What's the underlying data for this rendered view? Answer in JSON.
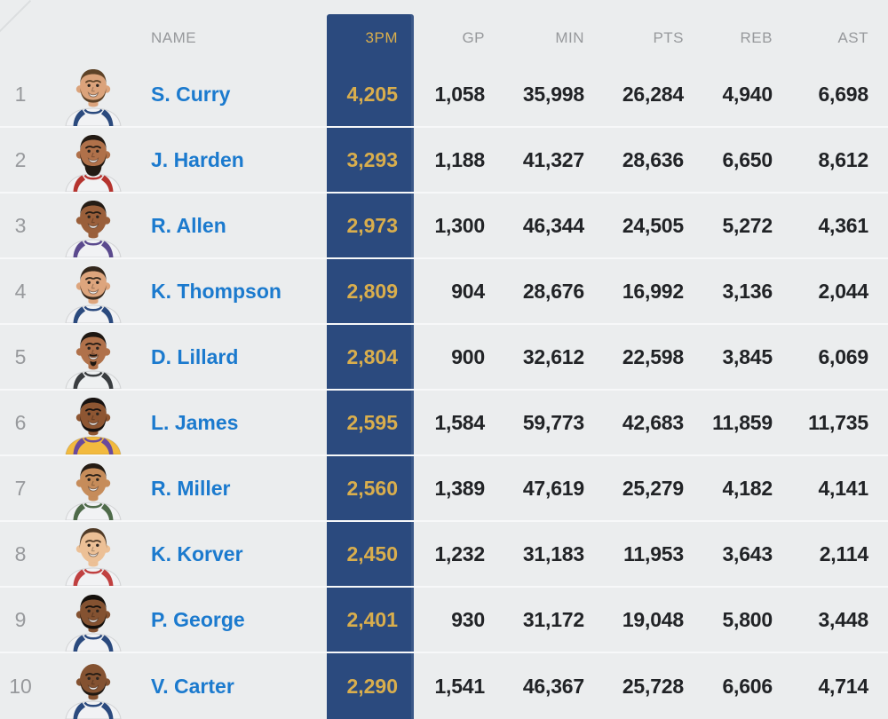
{
  "colors": {
    "background": "#ebedee",
    "row_divider": "#f7f8f9",
    "highlight_navy": "#2b4a7e",
    "highlight_gold": "#d9ae4d",
    "name_blue": "#1b7ace",
    "text_dark": "#212326",
    "muted_gray": "#97999c"
  },
  "table": {
    "header": {
      "name": "NAME",
      "threepm": "3PM",
      "gp": "GP",
      "min": "MIN",
      "pts": "PTS",
      "reb": "REB",
      "ast": "AST"
    },
    "highlighted_column": "3PM",
    "rows": [
      {
        "rank": "1",
        "name": "S. Curry",
        "threepm": "4,205",
        "gp": "1,058",
        "min": "35,998",
        "pts": "26,284",
        "reb": "4,940",
        "ast": "6,698",
        "avatar": {
          "skin": "#dba37b",
          "hairStyle": "short",
          "hair": "#5d4227",
          "beard": "trim",
          "beardColor": "#5d4227",
          "jersey": "#f1f2f4",
          "trim": "#2b4a7e"
        }
      },
      {
        "rank": "2",
        "name": "J. Harden",
        "threepm": "3,293",
        "gp": "1,188",
        "min": "41,327",
        "pts": "28,636",
        "reb": "6,650",
        "ast": "8,612",
        "avatar": {
          "skin": "#b0714a",
          "hairStyle": "short",
          "hair": "#221a13",
          "beard": "big",
          "beardColor": "#221a13",
          "jersey": "#f1f2f4",
          "trim": "#b5342f"
        }
      },
      {
        "rank": "3",
        "name": "R. Allen",
        "threepm": "2,973",
        "gp": "1,300",
        "min": "46,344",
        "pts": "24,505",
        "reb": "5,272",
        "ast": "4,361",
        "avatar": {
          "skin": "#9a5f3a",
          "hairStyle": "short",
          "hair": "#241c15",
          "beard": "none",
          "beardColor": "#241c15",
          "jersey": "#f1f2f4",
          "trim": "#5b4a8e"
        }
      },
      {
        "rank": "4",
        "name": "K. Thompson",
        "threepm": "2,809",
        "gp": "904",
        "min": "28,676",
        "pts": "16,992",
        "reb": "3,136",
        "ast": "2,044",
        "avatar": {
          "skin": "#dda57d",
          "hairStyle": "short",
          "hair": "#32261b",
          "beard": "trim",
          "beardColor": "#3a2c20",
          "jersey": "#f1f2f4",
          "trim": "#2b4a7e"
        }
      },
      {
        "rank": "5",
        "name": "D. Lillard",
        "threepm": "2,804",
        "gp": "900",
        "min": "32,612",
        "pts": "22,598",
        "reb": "3,845",
        "ast": "6,069",
        "avatar": {
          "skin": "#b0714a",
          "hairStyle": "short",
          "hair": "#1e1712",
          "beard": "goatee",
          "beardColor": "#1e1712",
          "jersey": "#eef0f1",
          "trim": "#3a3d40"
        }
      },
      {
        "rank": "6",
        "name": "L. James",
        "threepm": "2,595",
        "gp": "1,584",
        "min": "59,773",
        "pts": "42,683",
        "reb": "11,859",
        "ast": "11,735",
        "avatar": {
          "skin": "#8e5632",
          "hairStyle": "short",
          "hair": "#171210",
          "beard": "full",
          "beardColor": "#171210",
          "jersey": "#f2ba3e",
          "trim": "#6a4a9c"
        }
      },
      {
        "rank": "7",
        "name": "R. Miller",
        "threepm": "2,560",
        "gp": "1,389",
        "min": "47,619",
        "pts": "25,279",
        "reb": "4,182",
        "ast": "4,141",
        "avatar": {
          "skin": "#c68c5a",
          "hairStyle": "short",
          "hair": "#241c15",
          "beard": "none",
          "beardColor": "#241c15",
          "jersey": "#f1f2f4",
          "trim": "#4f6b4a"
        }
      },
      {
        "rank": "8",
        "name": "K. Korver",
        "threepm": "2,450",
        "gp": "1,232",
        "min": "31,183",
        "pts": "11,953",
        "reb": "3,643",
        "ast": "2,114",
        "avatar": {
          "skin": "#ecc096",
          "hairStyle": "full",
          "hair": "#503a26",
          "beard": "none",
          "beardColor": "#503a26",
          "jersey": "#f1f2f4",
          "trim": "#c04040"
        }
      },
      {
        "rank": "9",
        "name": "P. George",
        "threepm": "2,401",
        "gp": "930",
        "min": "31,172",
        "pts": "19,048",
        "reb": "5,800",
        "ast": "3,448",
        "avatar": {
          "skin": "#845231",
          "hairStyle": "short",
          "hair": "#14100c",
          "beard": "full",
          "beardColor": "#14100c",
          "jersey": "#f1f2f4",
          "trim": "#2b4a7e"
        }
      },
      {
        "rank": "10",
        "name": "V. Carter",
        "threepm": "2,290",
        "gp": "1,541",
        "min": "46,367",
        "pts": "25,728",
        "reb": "6,606",
        "ast": "4,714",
        "avatar": {
          "skin": "#845231",
          "hairStyle": "bald",
          "hair": "#201913",
          "beard": "trim",
          "beardColor": "#201913",
          "jersey": "#f1f2f4",
          "trim": "#2b4a7e"
        }
      }
    ]
  }
}
